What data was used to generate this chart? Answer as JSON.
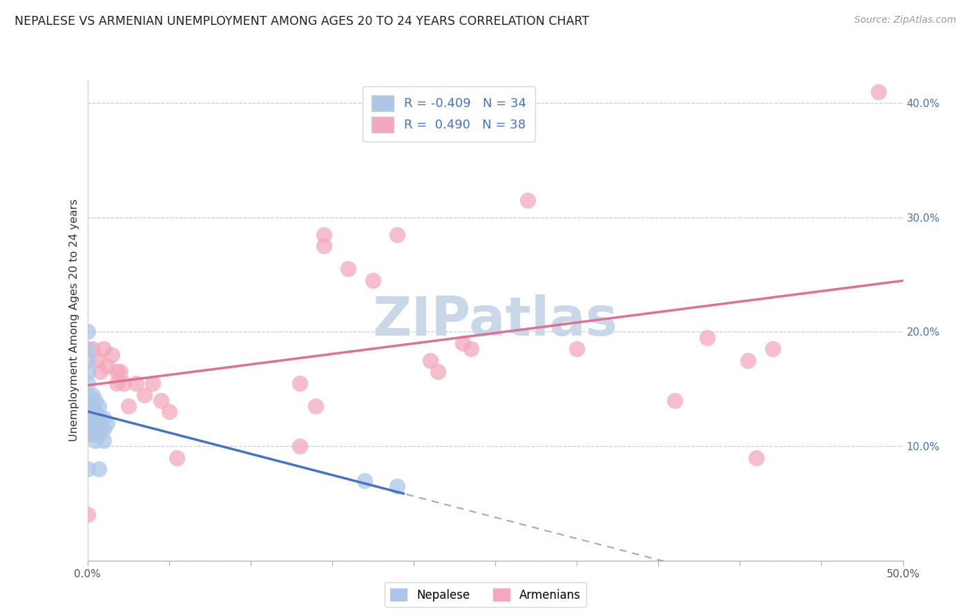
{
  "title": "NEPALESE VS ARMENIAN UNEMPLOYMENT AMONG AGES 20 TO 24 YEARS CORRELATION CHART",
  "source": "Source: ZipAtlas.com",
  "ylabel": "Unemployment Among Ages 20 to 24 years",
  "xmin": 0.0,
  "xmax": 0.5,
  "ymin": 0.0,
  "ymax": 0.42,
  "xtick_positions": [
    0.0,
    0.05,
    0.1,
    0.15,
    0.2,
    0.25,
    0.3,
    0.35,
    0.4,
    0.45,
    0.5
  ],
  "xtick_labels": [
    "0.0%",
    "",
    "",
    "",
    "",
    "",
    "",
    "",
    "",
    "",
    "50.0%"
  ],
  "yticks": [
    0.0,
    0.1,
    0.2,
    0.3,
    0.4
  ],
  "ytick_labels": [
    "",
    "10.0%",
    "20.0%",
    "30.0%",
    "40.0%"
  ],
  "nepalese_R": "-0.409",
  "nepalese_N": "34",
  "armenian_R": "0.490",
  "armenian_N": "38",
  "nepalese_color": "#adc6e8",
  "armenian_color": "#f4a8bb",
  "nepalese_line_color": "#4472c4",
  "armenian_line_color": "#e07090",
  "legend_text_color": "#4472c4",
  "nepalese_x": [
    0.0,
    0.0,
    0.0,
    0.0,
    0.0,
    0.0,
    0.0,
    0.0,
    0.003,
    0.003,
    0.003,
    0.003,
    0.003,
    0.003,
    0.005,
    0.005,
    0.005,
    0.005,
    0.005,
    0.005,
    0.007,
    0.007,
    0.007,
    0.007,
    0.007,
    0.007,
    0.008,
    0.008,
    0.01,
    0.01,
    0.01,
    0.012,
    0.17,
    0.19
  ],
  "nepalese_y": [
    0.2,
    0.185,
    0.175,
    0.165,
    0.155,
    0.145,
    0.135,
    0.08,
    0.145,
    0.135,
    0.125,
    0.12,
    0.115,
    0.11,
    0.14,
    0.13,
    0.125,
    0.12,
    0.11,
    0.105,
    0.135,
    0.125,
    0.12,
    0.115,
    0.11,
    0.08,
    0.125,
    0.115,
    0.125,
    0.115,
    0.105,
    0.12,
    0.07,
    0.065
  ],
  "armenian_x": [
    0.0,
    0.003,
    0.006,
    0.008,
    0.01,
    0.012,
    0.015,
    0.018,
    0.018,
    0.02,
    0.022,
    0.025,
    0.03,
    0.035,
    0.04,
    0.045,
    0.05,
    0.055,
    0.13,
    0.13,
    0.14,
    0.145,
    0.145,
    0.16,
    0.175,
    0.19,
    0.21,
    0.215,
    0.23,
    0.235,
    0.27,
    0.3,
    0.36,
    0.38,
    0.405,
    0.41,
    0.42,
    0.485
  ],
  "armenian_y": [
    0.04,
    0.185,
    0.175,
    0.165,
    0.185,
    0.17,
    0.18,
    0.165,
    0.155,
    0.165,
    0.155,
    0.135,
    0.155,
    0.145,
    0.155,
    0.14,
    0.13,
    0.09,
    0.155,
    0.1,
    0.135,
    0.285,
    0.275,
    0.255,
    0.245,
    0.285,
    0.175,
    0.165,
    0.19,
    0.185,
    0.315,
    0.185,
    0.14,
    0.195,
    0.175,
    0.09,
    0.185,
    0.41
  ],
  "background_color": "#ffffff",
  "watermark_text": "ZIPatlas",
  "watermark_color": "#c8d8e8"
}
